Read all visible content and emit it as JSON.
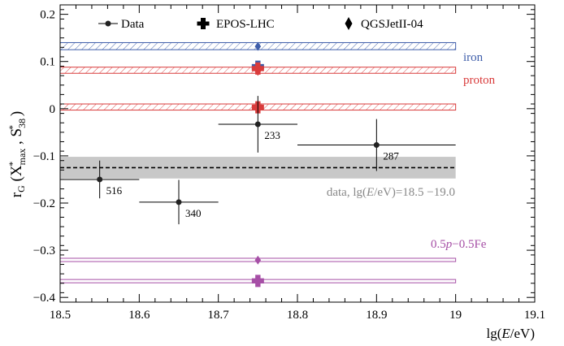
{
  "chart_data": {
    "type": "scatter",
    "xlabel": {
      "pre": "lg(",
      "it": "E",
      "post": "/eV)"
    },
    "ylabel": {
      "pre": "r",
      "sub": "G",
      "mid": " (X",
      "sub2": "max",
      "sup2": "*",
      "sep": " , S",
      "sub3": "38",
      "sup3": "*",
      "post": " )"
    },
    "xlim": [
      18.5,
      19.1
    ],
    "ylim": [
      -0.41,
      0.22
    ],
    "xticks": [
      18.5,
      18.6,
      18.7,
      18.8,
      18.9,
      19.0,
      19.1
    ],
    "xtick_labels": [
      "18.5",
      "18.6",
      "18.7",
      "18.8",
      "18.9",
      "19",
      "19.1"
    ],
    "yticks": [
      -0.4,
      -0.3,
      -0.2,
      -0.1,
      0,
      0.1,
      0.2
    ],
    "ytick_labels": [
      "−0.4",
      "−0.3",
      "−0.2",
      "−0.1",
      "0",
      "0.1",
      "0.2"
    ],
    "legend": {
      "placement": "top",
      "entries": [
        {
          "label": "Data",
          "marker": "circle-line"
        },
        {
          "label": "EPOS-LHC",
          "marker": "cross"
        },
        {
          "label": "QGSJetII-04",
          "marker": "diamond"
        }
      ]
    },
    "data_points": [
      {
        "x": 18.55,
        "y": -0.15,
        "xerr": 0.05,
        "yerr_low": 0.04,
        "yerr_high": 0.04,
        "label": "516"
      },
      {
        "x": 18.65,
        "y": -0.198,
        "xerr": 0.05,
        "yerr_low": 0.047,
        "yerr_high": 0.047,
        "label": "340"
      },
      {
        "x": 18.75,
        "y": -0.033,
        "xerr": 0.05,
        "yerr_low": 0.06,
        "yerr_high": 0.06,
        "label": "233"
      },
      {
        "x": 18.9,
        "y": -0.077,
        "xerr": 0.1,
        "yerr_low": 0.055,
        "yerr_high": 0.055,
        "label": "287"
      }
    ],
    "data_average": {
      "y": -0.125,
      "band": [
        -0.148,
        -0.102
      ],
      "xrange": [
        18.5,
        19.0
      ],
      "label_pre": "data, lg(",
      "label_it": "E",
      "label_post": "/eV)=18.5 −19.0",
      "color": "#c8c8c8"
    },
    "models": [
      {
        "name": "iron",
        "label": "iron",
        "color": "#3f5eaa",
        "band": [
          0.125,
          0.14
        ],
        "hatch": true,
        "epos": 0.089,
        "qgsjet": 0.132
      },
      {
        "name": "proton",
        "label": "proton",
        "color": "#d93b3b",
        "band": [
          0.075,
          0.088
        ],
        "hatch": true,
        "epos": 0.085,
        "qgsjet": 0.079
      },
      {
        "name": "proton-epos",
        "label": "",
        "color": "#d93b3b",
        "band": [
          -0.003,
          0.01
        ],
        "hatch": true,
        "epos": 0.003,
        "qgsjet": null
      },
      {
        "name": "mixed",
        "label_pre": "0.5",
        "label_it": "p",
        "label_post": "−0.5Fe",
        "color": "#a64fa6",
        "band": [
          -0.324,
          -0.317
        ],
        "hatch": false,
        "epos": null,
        "qgsjet": -0.321
      },
      {
        "name": "mixed-epos",
        "label": "",
        "color": "#a64fa6",
        "band": [
          -0.369,
          -0.362
        ],
        "hatch": false,
        "epos": -0.365,
        "qgsjet": null
      }
    ],
    "model_x": 18.75,
    "band_xrange": [
      18.5,
      19.0
    ],
    "grid": false
  }
}
